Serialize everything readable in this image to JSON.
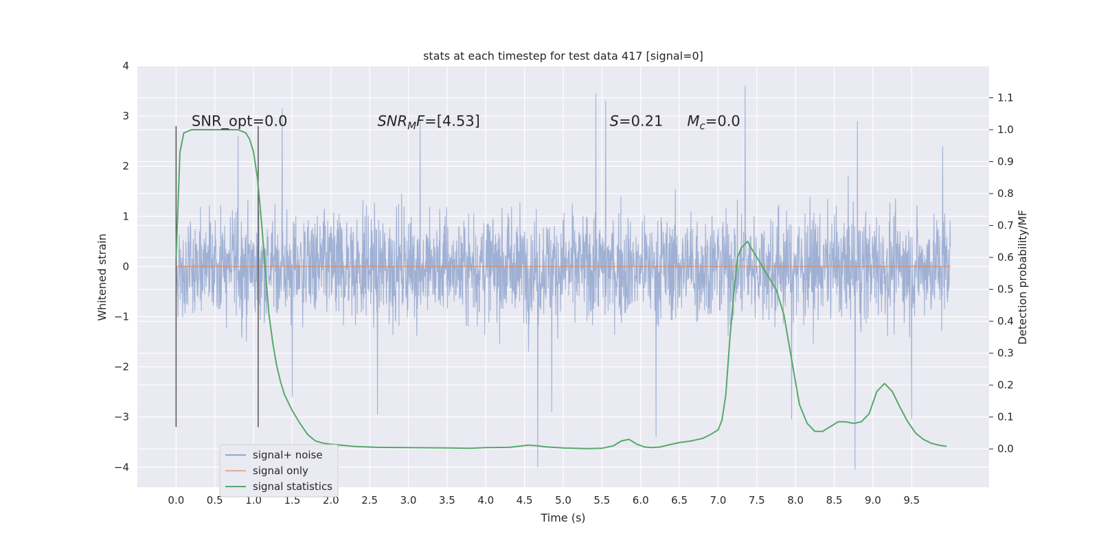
{
  "chart_data": {
    "type": "line",
    "title": "stats at each timestep for test data 417 [signal=0]",
    "xlabel": "Time (s)",
    "ylabel": "Whitened strain",
    "y2label": "Detection probability/MF",
    "xlim": [
      -0.5,
      10.5
    ],
    "ylim": [
      -4.4,
      4.0
    ],
    "y2lim": [
      -0.12,
      1.2
    ],
    "x_ticks": [
      "0.0",
      "0.5",
      "1.0",
      "1.5",
      "2.0",
      "2.5",
      "3.0",
      "3.5",
      "4.0",
      "4.5",
      "5.0",
      "5.5",
      "6.0",
      "6.5",
      "7.0",
      "7.5",
      "8.0",
      "8.5",
      "9.0",
      "9.5"
    ],
    "y_ticks": [
      "4",
      "3",
      "2",
      "1",
      "0",
      "−1",
      "−2",
      "−3",
      "−4"
    ],
    "y2_ticks": [
      "1.1",
      "1.0",
      "0.9",
      "0.8",
      "0.7",
      "0.6",
      "0.5",
      "0.4",
      "0.3",
      "0.2",
      "0.1",
      "0.0"
    ],
    "grid": true,
    "legend_placement": "lower-left",
    "series": [
      {
        "name": "signal+ noise",
        "color": "#92a6cf",
        "axis": "left",
        "x_range": [
          0.0,
          10.0
        ],
        "peaks": [
          {
            "x": 0.8,
            "y": 2.6
          },
          {
            "x": 1.37,
            "y": 3.15
          },
          {
            "x": 1.5,
            "y": -2.6
          },
          {
            "x": 2.6,
            "y": -2.95
          },
          {
            "x": 3.15,
            "y": 2.9
          },
          {
            "x": 4.67,
            "y": -4.0
          },
          {
            "x": 4.85,
            "y": -2.9
          },
          {
            "x": 5.42,
            "y": 3.45
          },
          {
            "x": 5.55,
            "y": 3.3
          },
          {
            "x": 6.2,
            "y": -3.4
          },
          {
            "x": 7.35,
            "y": 3.6
          },
          {
            "x": 7.95,
            "y": -3.05
          },
          {
            "x": 8.77,
            "y": -4.05
          },
          {
            "x": 8.8,
            "y": 2.9
          },
          {
            "x": 9.5,
            "y": -3.05
          },
          {
            "x": 9.9,
            "y": 2.4
          }
        ]
      },
      {
        "name": "signal only",
        "color": "#dd8452",
        "axis": "left",
        "x": [
          0.0,
          10.0
        ],
        "y": [
          0.0,
          0.0
        ]
      },
      {
        "name": "signal statistics",
        "color": "#55a868",
        "axis": "right",
        "x": [
          0.0,
          0.05,
          0.1,
          0.2,
          0.3,
          0.4,
          0.5,
          0.6,
          0.7,
          0.8,
          0.9,
          0.95,
          1.0,
          1.05,
          1.1,
          1.15,
          1.2,
          1.25,
          1.3,
          1.35,
          1.4,
          1.5,
          1.6,
          1.7,
          1.8,
          1.9,
          2.0,
          2.3,
          2.6,
          3.0,
          3.5,
          3.8,
          4.0,
          4.3,
          4.55,
          4.65,
          4.8,
          5.0,
          5.3,
          5.5,
          5.65,
          5.75,
          5.85,
          5.95,
          6.05,
          6.15,
          6.25,
          6.35,
          6.5,
          6.65,
          6.8,
          6.9,
          7.0,
          7.05,
          7.1,
          7.15,
          7.2,
          7.25,
          7.3,
          7.38,
          7.45,
          7.55,
          7.65,
          7.75,
          7.85,
          7.95,
          8.05,
          8.15,
          8.25,
          8.35,
          8.45,
          8.55,
          8.65,
          8.75,
          8.85,
          8.95,
          9.05,
          9.15,
          9.25,
          9.35,
          9.45,
          9.55,
          9.65,
          9.75,
          9.85,
          9.95
        ],
        "y": [
          0.6,
          0.93,
          0.99,
          1.0,
          1.0,
          1.0,
          1.0,
          1.0,
          1.0,
          1.0,
          0.99,
          0.97,
          0.93,
          0.85,
          0.72,
          0.57,
          0.42,
          0.33,
          0.26,
          0.21,
          0.17,
          0.12,
          0.08,
          0.045,
          0.025,
          0.018,
          0.015,
          0.008,
          0.005,
          0.004,
          0.003,
          0.002,
          0.004,
          0.005,
          0.012,
          0.01,
          0.006,
          0.003,
          0.001,
          0.002,
          0.01,
          0.025,
          0.03,
          0.015,
          0.006,
          0.004,
          0.006,
          0.012,
          0.02,
          0.025,
          0.033,
          0.045,
          0.06,
          0.09,
          0.17,
          0.34,
          0.48,
          0.6,
          0.63,
          0.65,
          0.62,
          0.58,
          0.54,
          0.5,
          0.42,
          0.28,
          0.14,
          0.08,
          0.055,
          0.055,
          0.07,
          0.085,
          0.085,
          0.08,
          0.085,
          0.11,
          0.18,
          0.205,
          0.18,
          0.13,
          0.085,
          0.05,
          0.03,
          0.018,
          0.012,
          0.008
        ]
      }
    ],
    "vlines": [
      {
        "x": 0.0,
        "y_from": -3.2,
        "y_to": 2.8,
        "color": "#555555"
      },
      {
        "x": 1.06,
        "y_from": -3.2,
        "y_to": 2.8,
        "color": "#555555"
      }
    ],
    "annotations": {
      "snr_opt": {
        "text": "SNR_opt=0.0",
        "x": 0.2,
        "y": 2.9
      },
      "snr_mf": {
        "label": "SNR",
        "sub": "M",
        "suffix": "F=[4.53]",
        "x": 2.6,
        "y": 2.9
      },
      "s": {
        "label": "S",
        "suffix": "=0.21",
        "x": 5.6,
        "y": 2.9
      },
      "mc": {
        "label": "M",
        "sub": "c",
        "suffix": "=0.0",
        "x": 6.6,
        "y": 2.9
      }
    }
  }
}
